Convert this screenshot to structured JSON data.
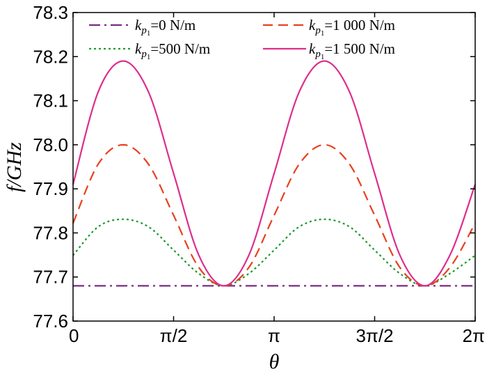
{
  "chart_data": {
    "type": "line",
    "xlabel": "θ",
    "ylabel": "f/GHz",
    "xlim": [
      0,
      6.283185
    ],
    "ylim": [
      77.6,
      78.3
    ],
    "x_ticks": [
      {
        "value": 0,
        "label": "0"
      },
      {
        "value": 1.570796,
        "label": "π/2"
      },
      {
        "value": 3.141593,
        "label": "π"
      },
      {
        "value": 4.712389,
        "label": "3π/2"
      },
      {
        "value": 6.283185,
        "label": "2π"
      }
    ],
    "y_ticks": [
      {
        "value": 77.6,
        "label": "77.6"
      },
      {
        "value": 77.7,
        "label": "77.7"
      },
      {
        "value": 77.8,
        "label": "77.8"
      },
      {
        "value": 77.9,
        "label": "77.9"
      },
      {
        "value": 78.0,
        "label": "78.0"
      },
      {
        "value": 78.1,
        "label": "78.1"
      },
      {
        "value": 78.2,
        "label": "78.2"
      },
      {
        "value": 78.3,
        "label": "78.3"
      }
    ],
    "grid": false,
    "legend_position": "top",
    "x": [
      0,
      0.393,
      0.785,
      1.178,
      1.571,
      1.963,
      2.356,
      2.749,
      3.142,
      3.534,
      3.927,
      4.32,
      4.712,
      5.105,
      5.498,
      5.89,
      6.283
    ],
    "series": [
      {
        "name_parts": {
          "pre": "k",
          "sub": "p",
          "subsub": "1",
          "post": "=0 N/m"
        },
        "color": "#7b2a84",
        "dash": "dashdot",
        "values": [
          77.68,
          77.68,
          77.68,
          77.68,
          77.68,
          77.68,
          77.68,
          77.68,
          77.68,
          77.68,
          77.68,
          77.68,
          77.68,
          77.68,
          77.68,
          77.68,
          77.68
        ]
      },
      {
        "name_parts": {
          "pre": "k",
          "sub": "p",
          "subsub": "1",
          "post": "=500 N/m"
        },
        "color": "#1e9a2e",
        "dash": "dotted",
        "values": [
          77.749,
          77.814,
          77.831,
          77.814,
          77.761,
          77.708,
          77.68,
          77.708,
          77.761,
          77.814,
          77.831,
          77.814,
          77.761,
          77.708,
          77.68,
          77.708,
          77.749
        ]
      },
      {
        "name_parts": {
          "pre": "k",
          "sub": "p",
          "subsub": "1",
          "post": "=1 000 N/m"
        },
        "color": "#e8401c",
        "dash": "dashed",
        "values": [
          77.822,
          77.956,
          78.0,
          77.956,
          77.84,
          77.722,
          77.68,
          77.722,
          77.84,
          77.956,
          78.0,
          77.956,
          77.84,
          77.722,
          77.68,
          77.722,
          77.822
        ]
      },
      {
        "name_parts": {
          "pre": "k",
          "sub": "p",
          "subsub": "1",
          "post": "=1 500 N/m"
        },
        "color": "#dd2d8c",
        "dash": "solid",
        "values": [
          77.91,
          78.12,
          78.19,
          78.12,
          77.935,
          77.75,
          77.68,
          77.75,
          77.935,
          78.12,
          78.19,
          78.12,
          77.935,
          77.75,
          77.68,
          77.75,
          77.91
        ]
      }
    ]
  }
}
